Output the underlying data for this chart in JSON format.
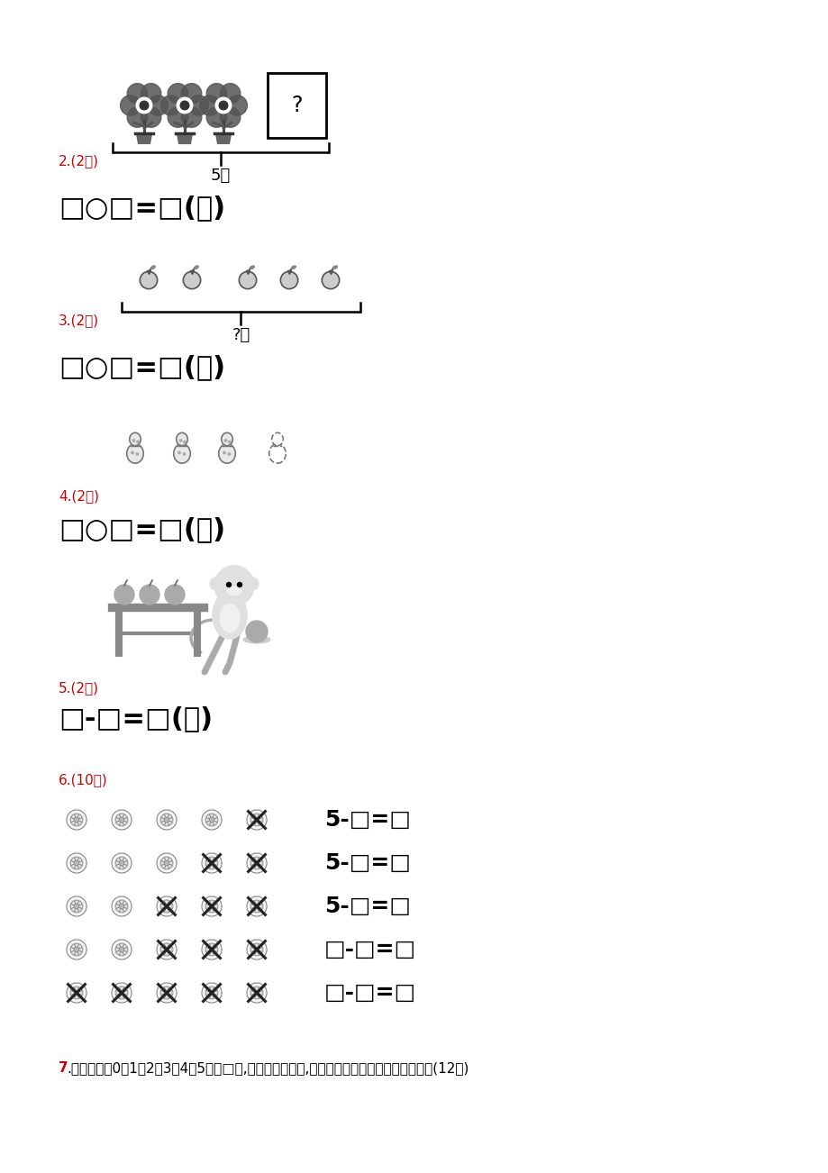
{
  "bg_color": "#ffffff",
  "sec2_label": "2.(2分)",
  "sec2_brace_text": "5盆",
  "sec2_formula": "□○□=□(盆)",
  "sec3_label": "3.(2分)",
  "sec3_brace_text": "?个",
  "sec3_formula": "□○□=□(个)",
  "sec4_label": "4.(2分)",
  "sec4_formula": "□○□=□(颗)",
  "sec5_label": "5.(2分)",
  "sec5_formula": "□-□=□(个)",
  "sec6_label": "6.(10分)",
  "sec6_rows": [
    {
      "solid": 4,
      "crossed": 1,
      "formula": "5-□=□"
    },
    {
      "solid": 3,
      "crossed": 2,
      "formula": "5-□=□"
    },
    {
      "solid": 2,
      "crossed": 3,
      "formula": "5-□=□"
    },
    {
      "solid": 2,
      "crossed": 3,
      "formula": "□-□=□"
    },
    {
      "solid": 0,
      "crossed": 5,
      "formula": "□-□=□"
    }
  ],
  "sec7_label": "7.",
  "sec7_text": "开火车。把0、1、2、3、4、5填在□里,每个数只用一次,使算式的得数和车头上的数相等。(12分)"
}
